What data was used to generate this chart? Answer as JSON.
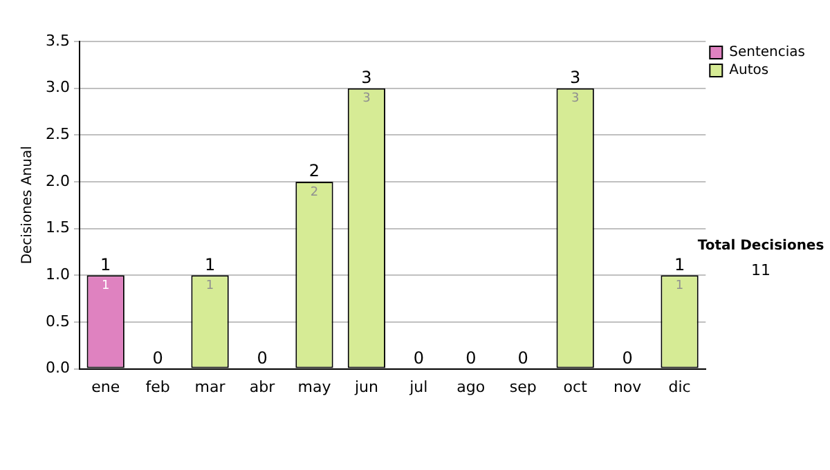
{
  "chart_data": {
    "type": "bar",
    "stacked": true,
    "ylabel": "Decisiones Anual",
    "categories": [
      "ene",
      "feb",
      "mar",
      "abr",
      "may",
      "jun",
      "jul",
      "ago",
      "sep",
      "oct",
      "nov",
      "dic"
    ],
    "series": [
      {
        "name": "Sentencias",
        "color": "#df82c0",
        "values": [
          1,
          0,
          0,
          0,
          0,
          0,
          0,
          0,
          0,
          0,
          0,
          0
        ],
        "value_labels": [
          "1",
          null,
          null,
          null,
          null,
          null,
          null,
          null,
          null,
          null,
          null,
          null
        ]
      },
      {
        "name": "Autos",
        "color": "#d6eb95",
        "values": [
          0,
          0,
          1,
          0,
          2,
          3,
          0,
          0,
          0,
          3,
          0,
          1
        ],
        "value_labels": [
          null,
          null,
          "1",
          null,
          "2",
          "3",
          null,
          null,
          null,
          "3",
          null,
          "1"
        ]
      }
    ],
    "totals": [
      "1",
      "0",
      "1",
      "0",
      "2",
      "3",
      "0",
      "0",
      "0",
      "3",
      "0",
      "1"
    ],
    "ylim": [
      0,
      3.5
    ],
    "yticks": [
      {
        "value": 0,
        "label": "0.0"
      },
      {
        "value": 0.5,
        "label": "0.5"
      },
      {
        "value": 1,
        "label": "1.0"
      },
      {
        "value": 1.5,
        "label": "1.5"
      },
      {
        "value": 2,
        "label": "2.0"
      },
      {
        "value": 2.5,
        "label": "2.5"
      },
      {
        "value": 3,
        "label": "3.0"
      },
      {
        "value": 3.5,
        "label": "3.5"
      }
    ],
    "grid": "y",
    "legend": "right",
    "annotations": [
      "Total Decisiones",
      "11"
    ]
  }
}
